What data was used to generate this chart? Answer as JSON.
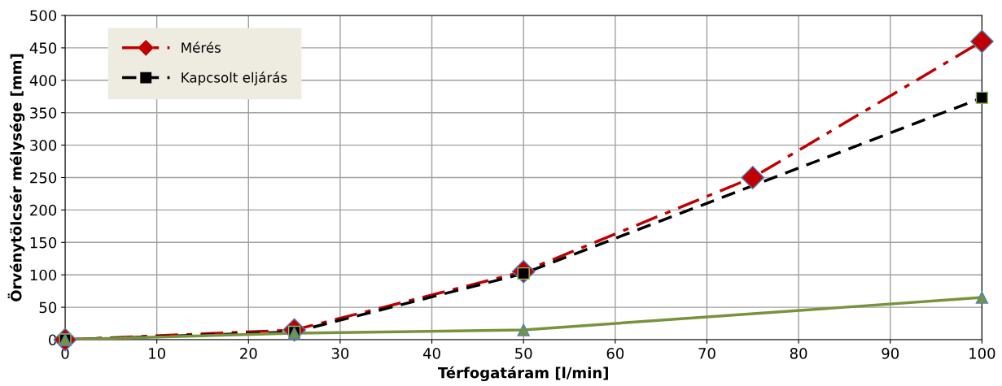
{
  "chart_data": {
    "type": "line",
    "xlabel": "Térfogatáram [l/min]",
    "ylabel": "Örvénytölcsér mélysége [mm]",
    "xlim": [
      0,
      100
    ],
    "xticks": [
      0,
      10,
      20,
      30,
      40,
      50,
      60,
      70,
      80,
      90,
      100
    ],
    "ylim": [
      0,
      500
    ],
    "yticks": [
      0,
      50,
      100,
      150,
      200,
      250,
      300,
      350,
      400,
      450,
      500
    ],
    "grid": true,
    "legend": "top left",
    "series": [
      {
        "name": "Mérés",
        "color": "#c00000",
        "x": [
          0,
          25,
          50,
          75,
          100
        ],
        "values": [
          0,
          15,
          105,
          250,
          460
        ],
        "marker": "diamond",
        "line_style": "dashdot"
      },
      {
        "name": "Kapcsolt eljárás",
        "color": "#000000",
        "x": [
          0,
          25,
          50,
          100
        ],
        "values": [
          0,
          12,
          102,
          373
        ],
        "marker": "square",
        "line_style": "dashed"
      },
      {
        "color": "#77933c",
        "x": [
          0,
          25,
          50,
          100
        ],
        "values": [
          0,
          10,
          15,
          65
        ],
        "marker": "triangle",
        "line_style": "solid"
      }
    ]
  }
}
